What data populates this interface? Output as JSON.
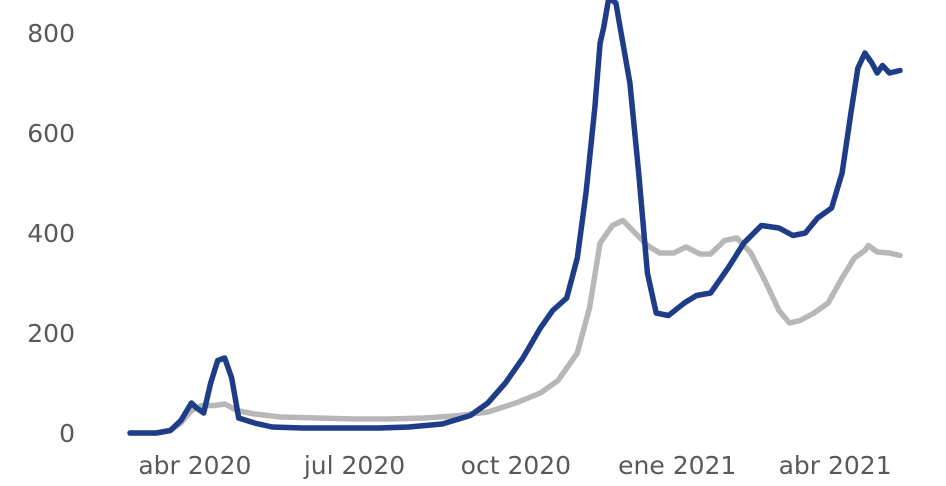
{
  "chart_data": {
    "type": "line",
    "title": "",
    "xlabel": "",
    "ylabel": "",
    "ylim": [
      0,
      880
    ],
    "y_ticks": [
      "0",
      "200",
      "400",
      "600",
      "800"
    ],
    "x_ticks": [
      {
        "label": "abr 2020",
        "date": "2020-04-01"
      },
      {
        "label": "jul 2020",
        "date": "2020-07-01"
      },
      {
        "label": "oct 2020",
        "date": "2020-10-01"
      },
      {
        "label": "ene 2021",
        "date": "2021-01-01"
      },
      {
        "label": "abr 2021",
        "date": "2021-04-01"
      }
    ],
    "grid": false,
    "legend": "none",
    "series": [
      {
        "color": "#1f3c88",
        "points": [
          [
            "2020-02-24",
            0
          ],
          [
            "2020-03-10",
            0
          ],
          [
            "2020-03-18",
            5
          ],
          [
            "2020-03-24",
            25
          ],
          [
            "2020-03-30",
            60
          ],
          [
            "2020-04-02",
            50
          ],
          [
            "2020-04-06",
            40
          ],
          [
            "2020-04-10",
            100
          ],
          [
            "2020-04-14",
            145
          ],
          [
            "2020-04-18",
            150
          ],
          [
            "2020-04-22",
            110
          ],
          [
            "2020-04-26",
            30
          ],
          [
            "2020-05-05",
            20
          ],
          [
            "2020-05-15",
            12
          ],
          [
            "2020-06-01",
            10
          ],
          [
            "2020-06-20",
            10
          ],
          [
            "2020-07-15",
            10
          ],
          [
            "2020-08-01",
            12
          ],
          [
            "2020-08-20",
            18
          ],
          [
            "2020-09-05",
            35
          ],
          [
            "2020-09-15",
            60
          ],
          [
            "2020-09-25",
            100
          ],
          [
            "2020-10-05",
            150
          ],
          [
            "2020-10-15",
            210
          ],
          [
            "2020-10-22",
            245
          ],
          [
            "2020-10-30",
            270
          ],
          [
            "2020-11-05",
            350
          ],
          [
            "2020-11-10",
            480
          ],
          [
            "2020-11-15",
            650
          ],
          [
            "2020-11-18",
            780
          ],
          [
            "2020-11-20",
            810
          ],
          [
            "2020-11-23",
            870
          ],
          [
            "2020-11-27",
            860
          ],
          [
            "2020-11-30",
            800
          ],
          [
            "2020-12-05",
            700
          ],
          [
            "2020-12-10",
            520
          ],
          [
            "2020-12-15",
            320
          ],
          [
            "2020-12-20",
            240
          ],
          [
            "2020-12-27",
            235
          ],
          [
            "2021-01-05",
            260
          ],
          [
            "2021-01-12",
            275
          ],
          [
            "2021-01-20",
            280
          ],
          [
            "2021-01-30",
            330
          ],
          [
            "2021-02-08",
            380
          ],
          [
            "2021-02-18",
            415
          ],
          [
            "2021-02-28",
            410
          ],
          [
            "2021-03-08",
            395
          ],
          [
            "2021-03-15",
            400
          ],
          [
            "2021-03-22",
            430
          ],
          [
            "2021-03-30",
            450
          ],
          [
            "2021-04-05",
            520
          ],
          [
            "2021-04-10",
            640
          ],
          [
            "2021-04-14",
            730
          ],
          [
            "2021-04-18",
            760
          ],
          [
            "2021-04-22",
            740
          ],
          [
            "2021-04-25",
            720
          ],
          [
            "2021-04-28",
            735
          ],
          [
            "2021-05-02",
            720
          ],
          [
            "2021-05-08",
            725
          ]
        ]
      },
      {
        "color": "#b7b7b7",
        "points": [
          [
            "2020-02-24",
            0
          ],
          [
            "2020-03-10",
            0
          ],
          [
            "2020-03-18",
            5
          ],
          [
            "2020-03-24",
            20
          ],
          [
            "2020-03-30",
            45
          ],
          [
            "2020-04-05",
            55
          ],
          [
            "2020-04-12",
            55
          ],
          [
            "2020-04-18",
            58
          ],
          [
            "2020-04-25",
            45
          ],
          [
            "2020-05-05",
            38
          ],
          [
            "2020-05-20",
            32
          ],
          [
            "2020-06-10",
            30
          ],
          [
            "2020-07-01",
            28
          ],
          [
            "2020-07-20",
            28
          ],
          [
            "2020-08-10",
            30
          ],
          [
            "2020-08-30",
            35
          ],
          [
            "2020-09-15",
            42
          ],
          [
            "2020-10-01",
            60
          ],
          [
            "2020-10-15",
            80
          ],
          [
            "2020-10-25",
            105
          ],
          [
            "2020-11-05",
            160
          ],
          [
            "2020-11-12",
            250
          ],
          [
            "2020-11-18",
            380
          ],
          [
            "2020-11-25",
            415
          ],
          [
            "2020-12-01",
            425
          ],
          [
            "2020-12-08",
            400
          ],
          [
            "2020-12-15",
            375
          ],
          [
            "2020-12-22",
            360
          ],
          [
            "2020-12-30",
            360
          ],
          [
            "2021-01-06",
            372
          ],
          [
            "2021-01-14",
            358
          ],
          [
            "2021-01-20",
            358
          ],
          [
            "2021-01-28",
            385
          ],
          [
            "2021-02-04",
            390
          ],
          [
            "2021-02-12",
            360
          ],
          [
            "2021-02-20",
            305
          ],
          [
            "2021-02-28",
            245
          ],
          [
            "2021-03-06",
            220
          ],
          [
            "2021-03-12",
            225
          ],
          [
            "2021-03-20",
            240
          ],
          [
            "2021-03-28",
            260
          ],
          [
            "2021-04-05",
            310
          ],
          [
            "2021-04-12",
            350
          ],
          [
            "2021-04-18",
            365
          ],
          [
            "2021-04-20",
            375
          ],
          [
            "2021-04-25",
            362
          ],
          [
            "2021-05-02",
            360
          ],
          [
            "2021-05-08",
            355
          ]
        ]
      }
    ]
  }
}
